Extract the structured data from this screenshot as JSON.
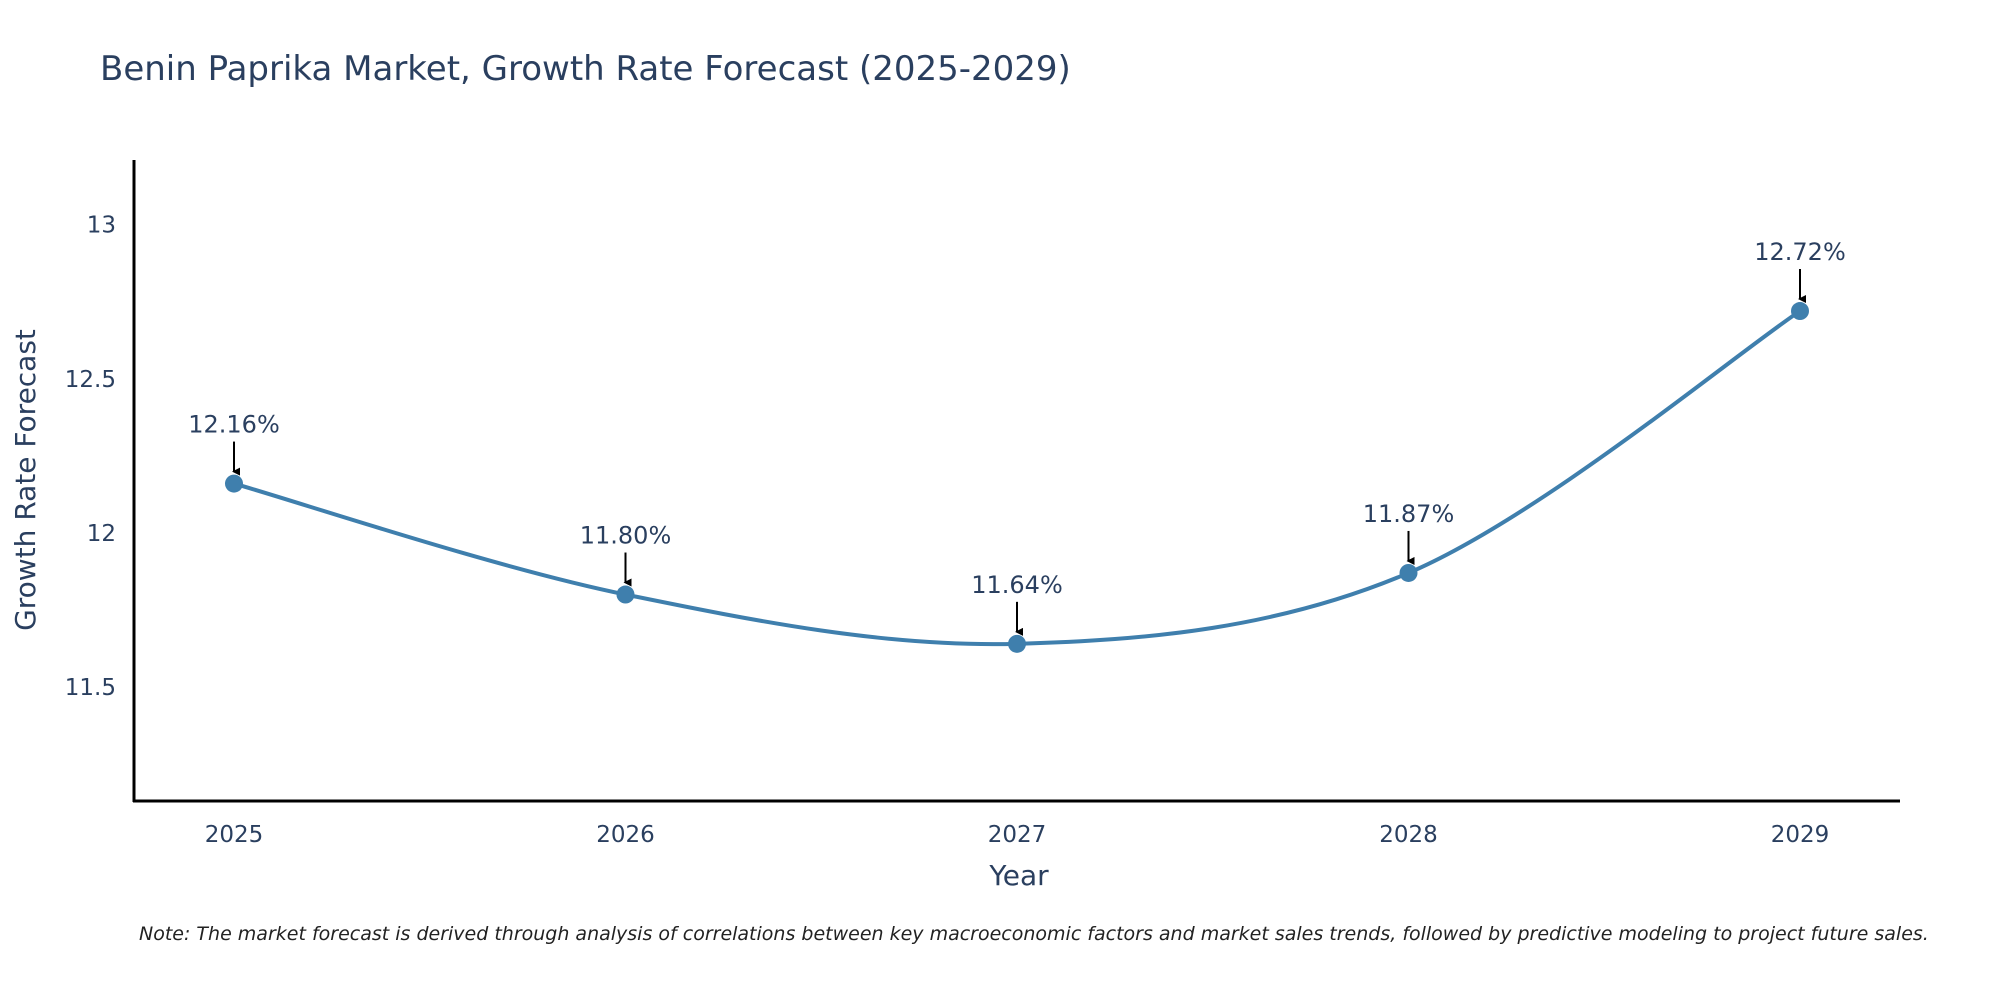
{
  "chart_data": {
    "type": "line",
    "title": "Benin Paprika Market, Growth Rate Forecast (2025-2029)",
    "xlabel": "Year",
    "ylabel": "Growth Rate Forecast",
    "categories": [
      "2025",
      "2026",
      "2027",
      "2028",
      "2029"
    ],
    "series": [
      {
        "name": "Growth Rate Forecast",
        "values": [
          12.16,
          11.8,
          11.64,
          11.87,
          12.72
        ]
      }
    ],
    "data_labels": [
      "12.16%",
      "11.80%",
      "11.64%",
      "11.87%",
      "12.72%"
    ],
    "ylim": [
      11.13,
      13.21
    ],
    "yticks": [
      11.5,
      12,
      12.5,
      13
    ],
    "ytick_labels": [
      "11.5",
      "12",
      "12.5",
      "13"
    ],
    "grid": false,
    "line_shape": "spline",
    "line_color": "#3f7fad",
    "marker_color": "#3f7fad",
    "arrow_color": "#000000",
    "note": "Note: The market forecast is derived through analysis of correlations between key macroeconomic factors and market sales trends, followed by predictive modeling to project future sales."
  }
}
